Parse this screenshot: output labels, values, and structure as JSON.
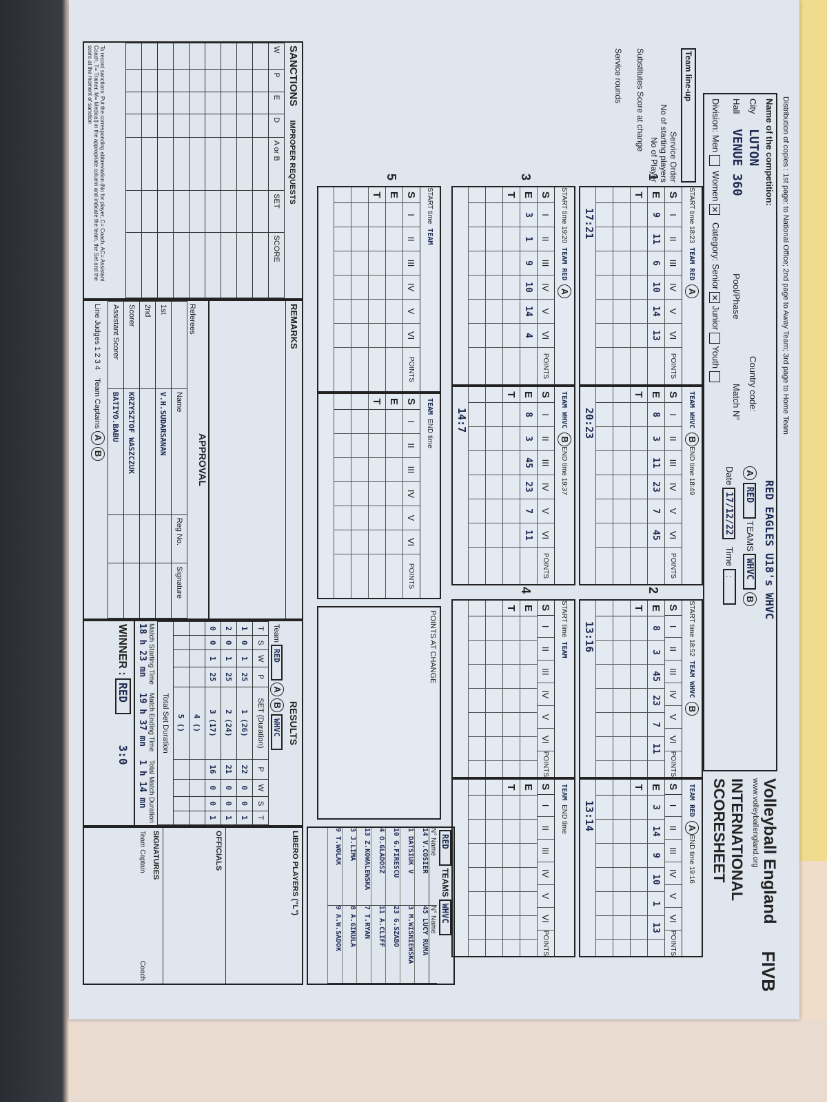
{
  "header": {
    "distribution": "Distribution of copies : 1st page: to National Office; 2nd page to Away Team; 3rd page to Home Team",
    "competition_label": "Name of the competition:",
    "competition": "RED EAGLES U18's WHVC",
    "city_label": "City",
    "city": "LUTON",
    "hall_label": "Hall",
    "hall": "VENUE 360",
    "pool_label": "Pool/Phase",
    "country_label": "Country code:",
    "match_label": "Match N°",
    "division_label": "Division:",
    "men_label": "Men",
    "women_label": "Women",
    "division_selected": "Women",
    "category_label": "Category:",
    "senior_label": "Senior",
    "junior_label": "Junior",
    "youth_label": "Youth",
    "category_selected": "Senior",
    "teams_label": "TEAMS",
    "vs_label": "vs",
    "team_a": "RED",
    "team_b": "WHVC",
    "date_label": "Date",
    "date": "17/12/22",
    "time_label": "Time"
  },
  "brand": {
    "name": "Volleyball England",
    "url": "www.volleyballengland.org",
    "title": "INTERNATIONAL SCORESHEET",
    "fivb": "FIVB"
  },
  "labels": {
    "team_lineup": "Team line-up",
    "service_order": "Service Order",
    "starting_players": "No of starting players",
    "no_player": "No of Player",
    "substitutes": "Substitutes Score at change",
    "service_rounds": "Service rounds",
    "start": "START time",
    "end": "END time",
    "team": "TEAM",
    "points": "POINTS",
    "points_at_change": "POINTS AT CHANGE",
    "change": "Change"
  },
  "sets": [
    {
      "number": "1",
      "start": "18:23",
      "end": "18:49",
      "left": {
        "team": "RED",
        "side": "A",
        "lineup": [
          "9",
          "11",
          "6",
          "10",
          "14",
          "13"
        ],
        "score": "17:21"
      },
      "right": {
        "team": "WHVC",
        "side": "B",
        "lineup": [
          "8",
          "3",
          "11",
          "23",
          "7",
          "45"
        ],
        "score": "20:23"
      }
    },
    {
      "number": "2",
      "start": "18:52",
      "end": "19:16",
      "left": {
        "team": "WHVC",
        "side": "B",
        "lineup": [
          "8",
          "3",
          "45",
          "23",
          "7",
          "11"
        ],
        "score": "13:16"
      },
      "right": {
        "team": "RED",
        "side": "A",
        "lineup": [
          "3",
          "14",
          "9",
          "10",
          "1",
          "13"
        ],
        "score": "13:14"
      }
    },
    {
      "number": "3",
      "start": "19:20",
      "end": "19:37",
      "left": {
        "team": "RED",
        "side": "A",
        "lineup": [
          "3",
          "1",
          "9",
          "10",
          "14",
          "4"
        ],
        "score": ""
      },
      "right": {
        "team": "WHVC",
        "side": "B",
        "lineup": [
          "8",
          "3",
          "45",
          "23",
          "7",
          "11"
        ],
        "score": "14:7"
      }
    },
    {
      "number": "4",
      "start": "",
      "end": "",
      "left": {
        "team": "",
        "side": "",
        "lineup": [
          "",
          "",
          "",
          "",
          "",
          ""
        ],
        "score": ""
      },
      "right": {
        "team": "",
        "side": "",
        "lineup": [
          "",
          "",
          "",
          "",
          "",
          ""
        ],
        "score": ""
      }
    },
    {
      "number": "5",
      "start": "",
      "end": "",
      "left": {
        "team": "",
        "side": "",
        "lineup": [
          "",
          "",
          "",
          "",
          "",
          ""
        ],
        "score": ""
      },
      "right": {
        "team": "",
        "side": "",
        "lineup": [
          "",
          "",
          "",
          "",
          "",
          ""
        ],
        "score": ""
      }
    }
  ],
  "rosters": {
    "label": "TEAMS",
    "no_label": "N°",
    "name_label": "Name",
    "reg_label": "Reg No",
    "team_a": {
      "name": "RED",
      "players": [
        {
          "no": "14",
          "name": "V.COSIER"
        },
        {
          "no": "1",
          "name": "DATSIUK V"
        },
        {
          "no": "10",
          "name": "G.FIRESCU"
        },
        {
          "no": "4",
          "name": "O.GLADOSZ"
        },
        {
          "no": "13",
          "name": "Z.KOWALEWSKA"
        },
        {
          "no": "3",
          "name": "J.LIMA"
        },
        {
          "no": "9",
          "name": "T.WOLAK"
        }
      ]
    },
    "team_b": {
      "name": "WHVC",
      "players": [
        {
          "no": "45",
          "name": "LUCY RUMA"
        },
        {
          "no": "3",
          "name": "M.WISNIEWSKA"
        },
        {
          "no": "23",
          "name": "G.SZABO"
        },
        {
          "no": "11",
          "name": "A.CLIFF"
        },
        {
          "no": "7",
          "name": "T.RYAN"
        },
        {
          "no": "8",
          "name": "A.GIKULA"
        },
        {
          "no": "9",
          "name": "A.W.SADOK"
        }
      ]
    },
    "libero_label": "LIBERO PLAYERS (\"L\")",
    "officials_label": "OFFICIALS",
    "signatures_label": "SIGNATURES",
    "captain_label": "Team Captain",
    "coach_label": "Coach"
  },
  "sanctions": {
    "title": "SANCTIONS",
    "improper": "IMPROPER REQUESTS",
    "cols": [
      "W",
      "P",
      "E",
      "D",
      "A or B",
      "SET",
      "SCORE"
    ],
    "note": "To record sanctions: Put the corresponding abbreviation (No for player, C= Coach, AC= Assistant Coach, T= Trainer, M= Medical) in the appropriate column and indicate the team, the Set and the score at the moment of sanction"
  },
  "remarks": {
    "title": "REMARKS"
  },
  "approval": {
    "title": "APPROVAL",
    "name_label": "Name",
    "reg_label": "Reg No.",
    "sig_label": "Signature",
    "referees_label": "Referees",
    "officials": [
      {
        "role": "1st",
        "name": "V.H.SUDARSANAN"
      },
      {
        "role": "2nd",
        "name": ""
      },
      {
        "role": "Scorer",
        "name": "KRZYSZTOF WASZCZUK"
      },
      {
        "role": "Assistant Scorer",
        "name": "BATIYO.BABU"
      }
    ],
    "line_judges": "Line Judges",
    "team_captains": "Team Captains"
  },
  "results": {
    "title": "RESULTS",
    "team_label": "Team",
    "team_a": "RED",
    "team_b": "WHVC",
    "cols_a": [
      "T",
      "S",
      "W",
      "P"
    ],
    "cols_b": [
      "P",
      "W",
      "S",
      "T"
    ],
    "set_label": "SET (Duration)",
    "rows": [
      {
        "a": [
          "1",
          "0",
          "1",
          "25"
        ],
        "set": "1",
        "dur": "26",
        "b": [
          "22",
          "0",
          "0",
          "1"
        ]
      },
      {
        "a": [
          "2",
          "0",
          "1",
          "25"
        ],
        "set": "2",
        "dur": "24",
        "b": [
          "21",
          "0",
          "0",
          "1"
        ]
      },
      {
        "a": [
          "0",
          "0",
          "1",
          "25"
        ],
        "set": "3",
        "dur": "17",
        "b": [
          "16",
          "0",
          "0",
          "1"
        ]
      },
      {
        "a": [
          "",
          "",
          "",
          ""
        ],
        "set": "4",
        "dur": "",
        "b": [
          "",
          "",
          "",
          ""
        ]
      },
      {
        "a": [
          "",
          "",
          "",
          ""
        ],
        "set": "5",
        "dur": "",
        "b": [
          "",
          "",
          "",
          ""
        ]
      }
    ],
    "total_label": "Total Set Duration",
    "start_label": "Match Starting Time",
    "start": "18 h 23 mn",
    "end_label": "Match Ending Time",
    "end": "19 h 37 mn",
    "duration_label": "Total Match Duration",
    "duration": "1 h 14 mn",
    "winner_label": "WINNER :",
    "winner": "RED",
    "final_score": "3:0"
  }
}
